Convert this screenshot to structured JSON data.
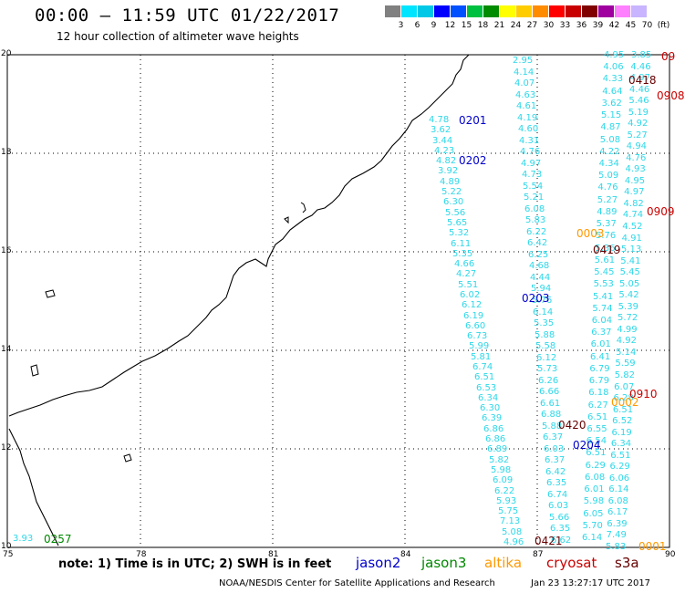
{
  "header": {
    "title": "00:00 – 11:59 UTC 01/22/2017",
    "subtitle": "12 hour collection of altimeter wave heights"
  },
  "color_scale": {
    "colors": [
      "#808080",
      "#00e5ff",
      "#00c8e6",
      "#0000ff",
      "#0050ff",
      "#00c040",
      "#008c00",
      "#ffff00",
      "#ffcc00",
      "#ff8c00",
      "#ff0000",
      "#c80000",
      "#800000",
      "#a000a0",
      "#ff80ff",
      "#c8b4ff",
      "#ffffff"
    ],
    "labels": [
      "3",
      "6",
      "9",
      "12",
      "15",
      "18",
      "21",
      "24",
      "27",
      "30",
      "33",
      "36",
      "39",
      "42",
      "45",
      "70",
      "(ft)"
    ]
  },
  "axes": {
    "lat_labels": [
      "20",
      "18",
      "16",
      "14",
      "12",
      "10"
    ],
    "lon_labels": [
      "75",
      "78",
      "81",
      "84",
      "87",
      "90"
    ]
  },
  "orbits": [
    {
      "id": "0201",
      "color": "#0000cc"
    },
    {
      "id": "0202",
      "color": "#0000cc"
    },
    {
      "id": "0203",
      "color": "#0000cc"
    },
    {
      "id": "0204",
      "color": "#0000cc"
    },
    {
      "id": "0257",
      "color": "#008800"
    },
    {
      "id": "0003",
      "color": "#ff9900"
    },
    {
      "id": "0002",
      "color": "#ff9900"
    },
    {
      "id": "0001",
      "color": "#ff9900"
    },
    {
      "id": "0909",
      "color": "#cc0000"
    },
    {
      "id": "0910",
      "color": "#cc0000"
    },
    {
      "id": "0418",
      "color": "#660000"
    },
    {
      "id": "0419",
      "color": "#660000"
    },
    {
      "id": "0420",
      "color": "#660000"
    },
    {
      "id": "0421",
      "color": "#660000"
    },
    {
      "id": "0908",
      "color": "#cc0000"
    },
    {
      "id": "09",
      "color": "#cc0000"
    }
  ],
  "tracks": {
    "t1": [
      "2.95",
      "4.14",
      "4.07",
      "4.63",
      "4.61",
      "4.19",
      "4.60",
      "4.31",
      "4.76",
      "4.97",
      "4.73",
      "5.54",
      "5.21",
      "6.08",
      "5.83",
      "6.22",
      "6.42",
      "6.25",
      "4.68",
      "4.44",
      "5.94",
      "5.76",
      "6.14",
      "5.35",
      "5.88",
      "5.58",
      "6.12",
      "5.73",
      "6.26",
      "6.66",
      "6.61",
      "6.88",
      "5.88",
      "6.37",
      "6.03",
      "6.37",
      "6.42",
      "6.35",
      "6.74",
      "6.03",
      "5.66",
      "6.35",
      "6.62"
    ],
    "t2": [
      "4.78",
      "3.62",
      "3.44",
      "4.23",
      "4.82",
      "3.92",
      "4.89",
      "5.22",
      "6.30",
      "5.56",
      "5.65",
      "5.32",
      "6.11",
      "5.35",
      "4.66",
      "4.27",
      "5.51",
      "6.02",
      "6.12",
      "6.19",
      "6.60",
      "6.73",
      "5.99",
      "5.81",
      "6.74",
      "6.51",
      "6.53",
      "6.34",
      "6.30",
      "6.39",
      "6.86",
      "6.86",
      "6.89",
      "5.82",
      "5.98",
      "6.09",
      "6.22",
      "5.93",
      "5.75",
      "7.13",
      "5.08",
      "4.96"
    ],
    "t3": [
      "4.95",
      "4.06",
      "4.33",
      "4.64",
      "3.62",
      "5.15",
      "4.87",
      "5.08",
      "4.22",
      "4.34",
      "5.09",
      "4.76",
      "5.27",
      "4.89",
      "5.37",
      "5.76",
      "5.36",
      "5.61",
      "5.45",
      "5.53",
      "5.41",
      "5.74",
      "6.04",
      "6.37",
      "6.01",
      "6.41",
      "6.79",
      "6.79",
      "6.18",
      "6.27",
      "6.51",
      "6.55",
      "6.54",
      "6.51",
      "6.29",
      "6.08",
      "6.01",
      "5.98",
      "6.05",
      "5.70",
      "6.14"
    ],
    "t4": [
      "3.85",
      "4.46",
      "4.97",
      "4.46",
      "5.46",
      "5.19",
      "4.92",
      "5.27",
      "4.94",
      "4.76",
      "4.93",
      "4.95",
      "4.97",
      "4.82",
      "4.74",
      "4.52",
      "4.91",
      "5.13",
      "5.41",
      "5.45",
      "5.05",
      "5.42",
      "5.39",
      "5.72",
      "4.99",
      "4.92",
      "5.14",
      "5.59",
      "5.82",
      "6.07",
      "6.28",
      "6.51",
      "6.52",
      "6.19",
      "6.34",
      "6.51",
      "6.29",
      "6.06",
      "6.14",
      "6.08",
      "6.17",
      "6.39",
      "7.49",
      "5.83"
    ],
    "t5": [
      "3.93"
    ]
  },
  "footer": {
    "note": "note: 1) Time is in UTC; 2) SWH is in feet",
    "legend": [
      {
        "label": "jason2",
        "color": "#0000cc"
      },
      {
        "label": "jason3",
        "color": "#008800"
      },
      {
        "label": "altika",
        "color": "#ff9900"
      },
      {
        "label": "cryosat",
        "color": "#cc0000"
      },
      {
        "label": "s3a",
        "color": "#660000"
      }
    ],
    "credit": "NOAA/NESDIS Center for Satellite Applications and Research",
    "stamp": "Jan 23 13:27:17 UTC 2017"
  }
}
